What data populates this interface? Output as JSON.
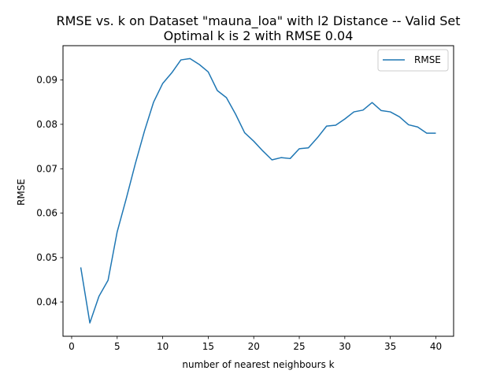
{
  "chart_data": {
    "type": "line",
    "title": "RMSE vs. k on Dataset \"mauna_loa\" with l2 Distance -- Valid Set",
    "subtitle": "Optimal k is 2 with RMSE 0.04",
    "xlabel": "number of nearest neighbours k",
    "ylabel": "RMSE",
    "xlim": [
      -0.95,
      41.95
    ],
    "ylim": [
      0.0323,
      0.0977
    ],
    "xticks": [
      0,
      5,
      10,
      15,
      20,
      25,
      30,
      35,
      40
    ],
    "xtick_labels": [
      "0",
      "5",
      "10",
      "15",
      "20",
      "25",
      "30",
      "35",
      "40"
    ],
    "yticks": [
      0.04,
      0.05,
      0.06,
      0.07,
      0.08,
      0.09
    ],
    "ytick_labels": [
      "0.04",
      "0.05",
      "0.06",
      "0.07",
      "0.08",
      "0.09"
    ],
    "grid": false,
    "legend_position": "top-right",
    "x": [
      1,
      2,
      3,
      4,
      5,
      6,
      7,
      8,
      9,
      10,
      11,
      12,
      13,
      14,
      15,
      16,
      17,
      18,
      19,
      20,
      21,
      22,
      23,
      24,
      25,
      26,
      27,
      28,
      29,
      30,
      31,
      32,
      33,
      34,
      35,
      36,
      37,
      38,
      39,
      40
    ],
    "series": [
      {
        "name": "RMSE",
        "color": "#1f77b4",
        "values": [
          0.0478,
          0.0353,
          0.0413,
          0.0449,
          0.0558,
          0.0633,
          0.0712,
          0.0785,
          0.085,
          0.0892,
          0.0916,
          0.0945,
          0.0948,
          0.0935,
          0.0918,
          0.0876,
          0.086,
          0.0823,
          0.0781,
          0.0762,
          0.074,
          0.072,
          0.0725,
          0.0723,
          0.0745,
          0.0747,
          0.077,
          0.0796,
          0.0798,
          0.0812,
          0.0828,
          0.0832,
          0.0849,
          0.0831,
          0.0828,
          0.0817,
          0.0799,
          0.0794,
          0.078,
          0.078
        ]
      }
    ]
  }
}
